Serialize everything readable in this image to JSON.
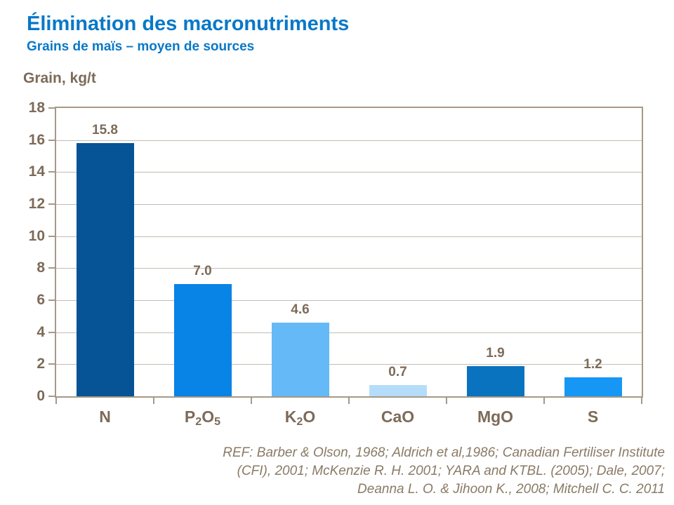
{
  "header": {
    "title": "Élimination des macronutriments",
    "subtitle": "Grains de maïs – moyen de sources"
  },
  "colors": {
    "accent_blue": "#0878c8",
    "text_brown": "#7c6b58",
    "ref_brown": "#8a7a66",
    "plot_border": "#a59988",
    "gridline": "#c3bcb2"
  },
  "chart_data": {
    "type": "bar",
    "title": "Élimination des macronutriments",
    "subtitle": "Grains de maïs – moyen de sources",
    "ylabel": "Grain, kg/t",
    "xlabel": "",
    "categories": [
      "N",
      "P2O5",
      "K2O",
      "CaO",
      "MgO",
      "S"
    ],
    "category_parts": [
      [
        {
          "t": "N"
        }
      ],
      [
        {
          "t": "P"
        },
        {
          "t": "2",
          "sub": true
        },
        {
          "t": "O"
        },
        {
          "t": "5",
          "sub": true
        }
      ],
      [
        {
          "t": "K"
        },
        {
          "t": "2",
          "sub": true
        },
        {
          "t": "O"
        }
      ],
      [
        {
          "t": "CaO"
        }
      ],
      [
        {
          "t": "MgO"
        }
      ],
      [
        {
          "t": "S"
        }
      ]
    ],
    "values": [
      15.8,
      7.0,
      4.6,
      0.7,
      1.9,
      1.2
    ],
    "value_labels": [
      "15.8",
      "7.0",
      "4.6",
      "0.7",
      "1.9",
      "1.2"
    ],
    "bar_colors": [
      "#065396",
      "#0883e6",
      "#66b9f7",
      "#b5ddfa",
      "#0a73c0",
      "#1697f5"
    ],
    "ylim": [
      0,
      18
    ],
    "ytick_step": 2,
    "grid": true,
    "legend": "none"
  },
  "reference": {
    "lines": [
      "REF: Barber & Olson, 1968; Aldrich et al,1986; Canadian Fertiliser Institute",
      "(CFI), 2001; McKenzie R. H. 2001; YARA and KTBL. (2005); Dale, 2007;",
      "Deanna L. O. & Jihoon K., 2008; Mitchell C. C. 2011"
    ]
  }
}
